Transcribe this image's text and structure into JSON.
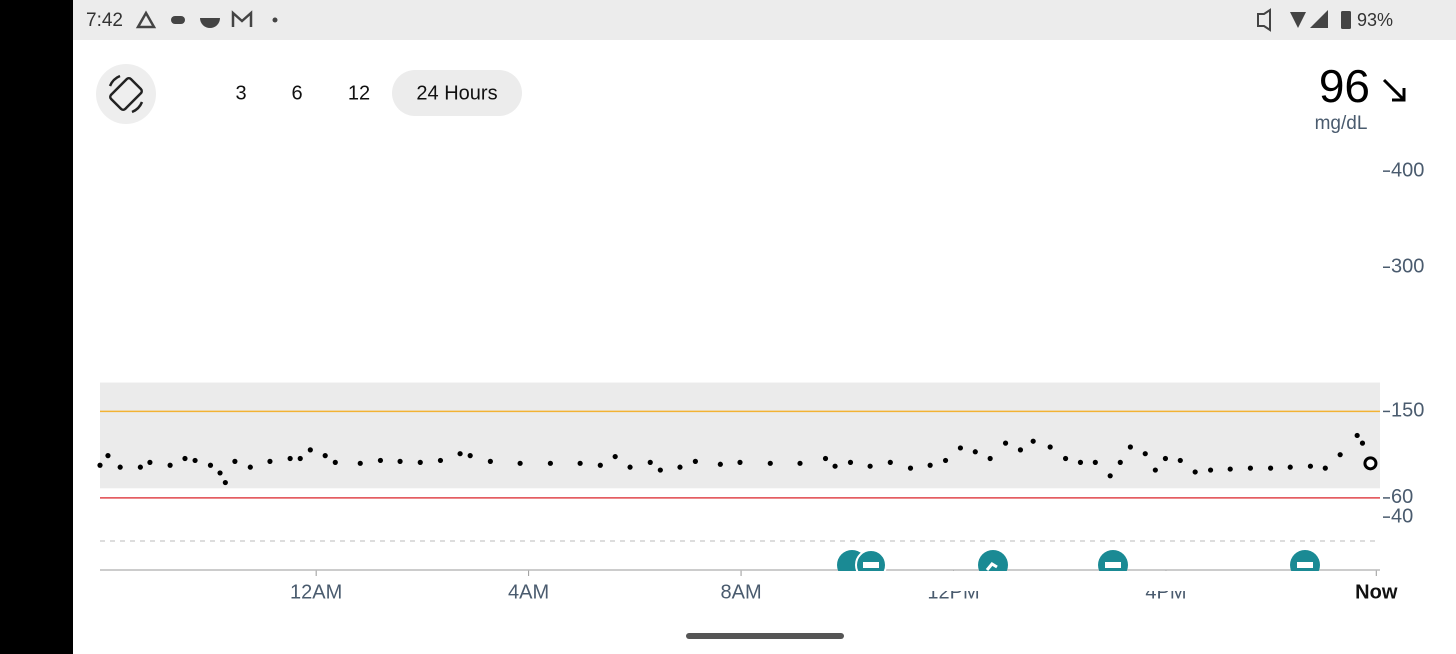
{
  "status_bar": {
    "time": "7:42",
    "battery": "93%"
  },
  "range_buttons": [
    "3",
    "6",
    "12",
    "24 Hours"
  ],
  "reading": {
    "value": "96",
    "unit": "mg/dL"
  },
  "chart_data": {
    "type": "scatter",
    "x": [
      -4.07,
      -3.92,
      -3.69,
      -3.31,
      -3.13,
      -2.75,
      -2.47,
      -2.28,
      -1.99,
      -1.81,
      -1.71,
      -1.53,
      -1.24,
      -0.87,
      -0.49,
      -0.3,
      -0.11,
      0.17,
      0.36,
      0.83,
      1.21,
      1.58,
      1.96,
      2.34,
      2.71,
      2.9,
      3.28,
      3.84,
      4.41,
      4.97,
      5.35,
      5.63,
      5.91,
      6.29,
      6.48,
      6.85,
      7.14,
      7.61,
      7.98,
      8.55,
      9.11,
      9.59,
      9.77,
      10.06,
      10.43,
      10.81,
      11.19,
      11.56,
      11.85,
      12.13,
      12.41,
      12.69,
      12.98,
      13.26,
      13.5,
      13.82,
      14.11,
      14.39,
      14.67,
      14.95,
      15.14,
      15.33,
      15.61,
      15.8,
      15.99,
      16.27,
      16.55,
      16.84,
      17.21,
      17.59,
      17.97,
      18.34,
      18.72,
      19.0,
      19.28,
      19.6,
      19.7,
      19.85
    ],
    "values": [
      94,
      104,
      92,
      92,
      97,
      94,
      101,
      99,
      94,
      86,
      76,
      98,
      92,
      98,
      101,
      101,
      110,
      104,
      97,
      96,
      99,
      98,
      97,
      99,
      106,
      104,
      98,
      96,
      96,
      96,
      94,
      103,
      92,
      97,
      89,
      92,
      98,
      95,
      97,
      96,
      96,
      101,
      93,
      97,
      93,
      97,
      91,
      94,
      99,
      112,
      108,
      101,
      117,
      110,
      119,
      113,
      101,
      97,
      97,
      83,
      97,
      113,
      106,
      89,
      101,
      99,
      87,
      89,
      90,
      91,
      91,
      92,
      93,
      91,
      105,
      125,
      117,
      96
    ],
    "color": "#000000",
    "xlim": [
      -4.07,
      20.03
    ],
    "ylim": [
      -15,
      422
    ],
    "xticks": [
      {
        "value": 0,
        "label": "12AM"
      },
      {
        "value": 4,
        "label": "4AM"
      },
      {
        "value": 8,
        "label": "8AM"
      },
      {
        "value": 12,
        "label": "12PM"
      },
      {
        "value": 16,
        "label": "4PM"
      },
      {
        "value": 19.96,
        "label": "Now"
      }
    ],
    "yticks": [
      40,
      60,
      150,
      300,
      400
    ],
    "band": {
      "range": [
        70,
        180
      ],
      "color": "#ebebeb"
    },
    "reference_lines": [
      {
        "value": 150,
        "color": "#f2b233"
      },
      {
        "value": 60,
        "color": "#e0464b"
      }
    ]
  }
}
